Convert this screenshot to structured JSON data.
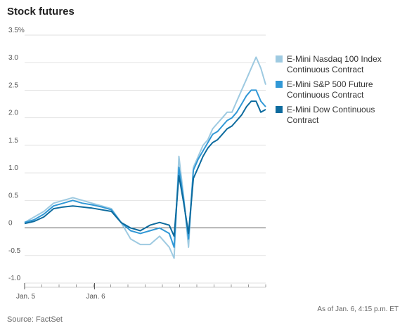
{
  "chart_data": {
    "type": "line",
    "title": "Stock futures",
    "xlabel": "",
    "ylabel": "",
    "ylim": [
      -1.0,
      3.5
    ],
    "yticks": [
      "3.5%",
      "3.0",
      "2.5",
      "2.0",
      "1.5",
      "1.0",
      "0.5",
      "0",
      "-0.5",
      "-1.0"
    ],
    "ytick_values": [
      3.5,
      3.0,
      2.5,
      2.0,
      1.5,
      1.0,
      0.5,
      0,
      -0.5,
      -1.0
    ],
    "xticks": [
      "Jan. 5",
      "Jan. 6"
    ],
    "xtick_values": [
      0,
      0.29
    ],
    "xlim": [
      0,
      1
    ],
    "grid": true,
    "legend_position": "right",
    "x": [
      0.0,
      0.04,
      0.08,
      0.12,
      0.16,
      0.2,
      0.24,
      0.28,
      0.32,
      0.36,
      0.4,
      0.44,
      0.48,
      0.52,
      0.56,
      0.6,
      0.62,
      0.64,
      0.66,
      0.68,
      0.7,
      0.72,
      0.74,
      0.76,
      0.78,
      0.8,
      0.82,
      0.84,
      0.86,
      0.88,
      0.9,
      0.92,
      0.94,
      0.96,
      0.98,
      1.0
    ],
    "series": [
      {
        "name": "E-Mini Nasdaq 100 Index Continuous Contract",
        "color": "#9ecae1",
        "values": [
          0.1,
          0.2,
          0.3,
          0.45,
          0.5,
          0.55,
          0.5,
          0.45,
          0.4,
          0.35,
          0.1,
          -0.2,
          -0.3,
          -0.3,
          -0.15,
          -0.35,
          -0.55,
          1.3,
          0.55,
          -0.35,
          1.1,
          1.3,
          1.5,
          1.6,
          1.8,
          1.9,
          2.0,
          2.1,
          2.1,
          2.3,
          2.5,
          2.7,
          2.9,
          3.1,
          2.9,
          2.6
        ]
      },
      {
        "name": "E-Mini S&P 500 Future Continuous Contract",
        "color": "#3198d6",
        "values": [
          0.1,
          0.15,
          0.25,
          0.4,
          0.45,
          0.5,
          0.45,
          0.42,
          0.38,
          0.33,
          0.1,
          -0.05,
          -0.1,
          -0.05,
          0.0,
          -0.1,
          -0.35,
          1.1,
          0.5,
          -0.2,
          1.05,
          1.25,
          1.4,
          1.55,
          1.7,
          1.75,
          1.85,
          1.95,
          2.0,
          2.1,
          2.25,
          2.4,
          2.5,
          2.5,
          2.3,
          2.2
        ]
      },
      {
        "name": "E-Mini Dow Continuous Contract",
        "color": "#0d6b9e",
        "values": [
          0.08,
          0.12,
          0.2,
          0.35,
          0.38,
          0.4,
          0.38,
          0.36,
          0.33,
          0.3,
          0.1,
          0.0,
          -0.05,
          0.05,
          0.1,
          0.05,
          -0.15,
          0.95,
          0.45,
          -0.1,
          0.9,
          1.1,
          1.3,
          1.45,
          1.55,
          1.6,
          1.7,
          1.8,
          1.85,
          1.95,
          2.05,
          2.2,
          2.3,
          2.3,
          2.1,
          2.15
        ]
      }
    ]
  },
  "footer": {
    "as_of": "As of Jan. 6, 4:15 p.m. ET",
    "source": "Source: FactSet"
  }
}
